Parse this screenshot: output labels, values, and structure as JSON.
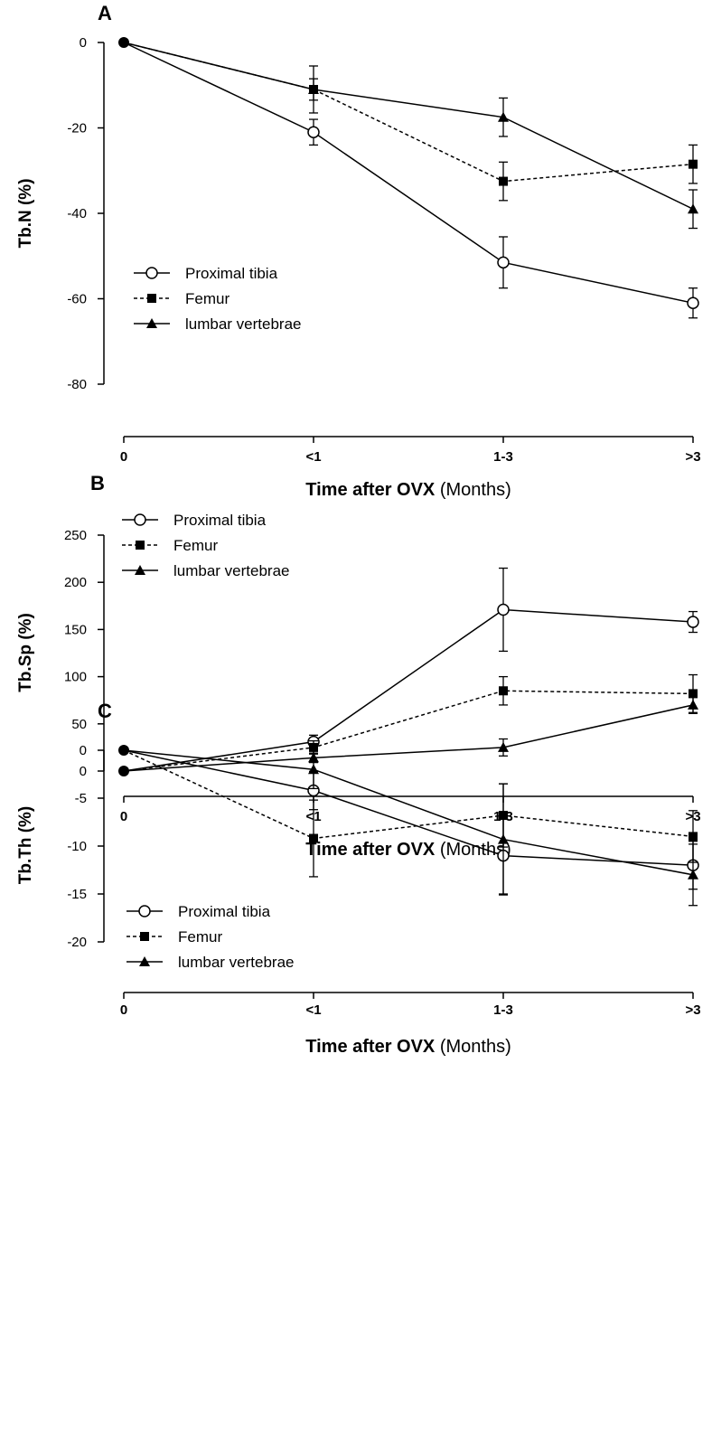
{
  "chart_data": [
    {
      "panel_label": "A",
      "type": "line",
      "xlabel_bold": "Time after OVX",
      "xlabel_rest": " (Months)",
      "ylabel": "Tb.N (%)",
      "categories": [
        "0",
        "<1",
        "1-3",
        ">3"
      ],
      "ylim": [
        -80,
        0
      ],
      "yticks": [
        0,
        -20,
        -40,
        -60,
        -80
      ],
      "legend_position": "bottom-left",
      "series": [
        {
          "name": "Proximal tibia",
          "marker": "circle-open",
          "line": "solid",
          "values": [
            0,
            -21,
            -51.5,
            -61
          ],
          "errors": [
            0,
            3,
            6,
            3.5
          ]
        },
        {
          "name": "Femur",
          "marker": "square",
          "line": "dashed",
          "values": [
            0,
            -11,
            -32.5,
            -28.5
          ],
          "errors": [
            0,
            5.5,
            4.5,
            4.5
          ]
        },
        {
          "name": "lumbar vertebrae",
          "marker": "triangle",
          "line": "solid",
          "values": [
            0,
            -11,
            -17.5,
            -39
          ],
          "errors": [
            0,
            2.5,
            4.5,
            4.5
          ]
        }
      ]
    },
    {
      "panel_label": "B",
      "type": "line",
      "xlabel_bold": "Time after OVX",
      "xlabel_rest": " (Months)",
      "ylabel": "Tb.Sp (%)",
      "categories": [
        "0",
        "<1",
        "1-3",
        ">3"
      ],
      "ylim": [
        0,
        250
      ],
      "yticks": [
        0,
        50,
        100,
        150,
        200,
        250
      ],
      "legend_position": "top-left",
      "series": [
        {
          "name": "Proximal tibia",
          "marker": "circle-open",
          "line": "solid",
          "values": [
            0,
            31,
            171,
            158
          ],
          "errors": [
            0,
            7,
            44,
            11
          ]
        },
        {
          "name": "Femur",
          "marker": "square",
          "line": "dashed",
          "values": [
            0,
            25,
            85,
            82
          ],
          "errors": [
            0,
            7,
            15,
            20
          ]
        },
        {
          "name": "lumbar vertebrae",
          "marker": "triangle",
          "line": "solid",
          "values": [
            0,
            14,
            25,
            70
          ],
          "errors": [
            0,
            5,
            9,
            9
          ]
        }
      ]
    },
    {
      "panel_label": "C",
      "type": "line",
      "xlabel_bold": "Time after OVX",
      "xlabel_rest": " (Months)",
      "ylabel": "Tb.Th (%)",
      "categories": [
        "0",
        "<1",
        "1-3",
        ">3"
      ],
      "ylim": [
        -20,
        0
      ],
      "yticks": [
        0,
        -5,
        -10,
        -15,
        -20
      ],
      "legend_position": "bottom-left",
      "series": [
        {
          "name": "Proximal tibia",
          "marker": "circle-open",
          "line": "solid",
          "values": [
            0,
            -4.2,
            -11,
            -12
          ],
          "errors": [
            0,
            2,
            4,
            2.5
          ]
        },
        {
          "name": "Femur",
          "marker": "square",
          "line": "dashed",
          "values": [
            0,
            -9.2,
            -6.8,
            -9
          ],
          "errors": [
            0,
            4,
            3.3,
            2.7
          ]
        },
        {
          "name": "lumbar vertebrae",
          "marker": "triangle",
          "line": "solid",
          "values": [
            0,
            -2,
            -9.3,
            -13
          ],
          "errors": [
            0,
            2,
            5.8,
            3.2
          ]
        }
      ]
    }
  ]
}
